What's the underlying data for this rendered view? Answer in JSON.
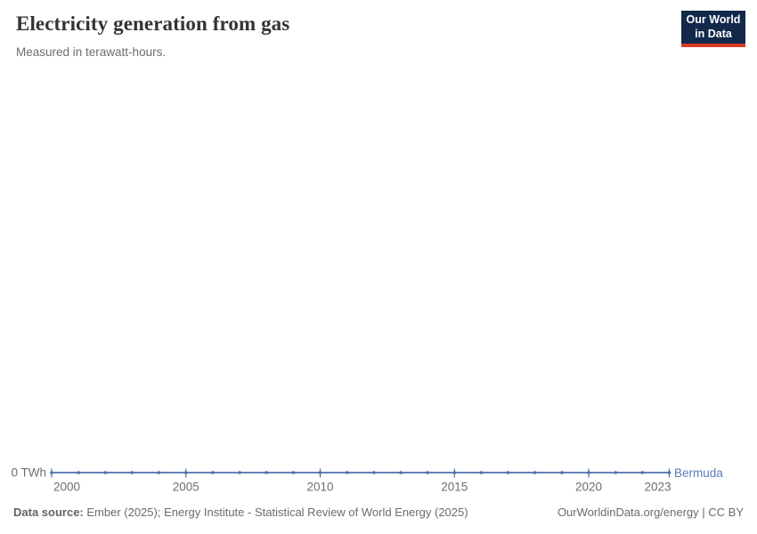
{
  "header": {
    "title": "Electricity generation from gas",
    "subtitle": "Measured in terawatt-hours.",
    "logo": {
      "line1": "Our World",
      "line2": "in Data"
    }
  },
  "chart_data": {
    "type": "line",
    "title": "Electricity generation from gas",
    "ylabel": "terawatt-hours",
    "x": [
      2000,
      2001,
      2002,
      2003,
      2004,
      2005,
      2006,
      2007,
      2008,
      2009,
      2010,
      2011,
      2012,
      2013,
      2014,
      2015,
      2016,
      2017,
      2018,
      2019,
      2020,
      2021,
      2022,
      2023
    ],
    "series": [
      {
        "name": "Bermuda",
        "values": [
          0,
          0,
          0,
          0,
          0,
          0,
          0,
          0,
          0,
          0,
          0,
          0,
          0,
          0,
          0,
          0,
          0,
          0,
          0,
          0,
          0,
          0,
          0,
          0
        ],
        "color": "#4e70a8",
        "label_color": "#5b7db8"
      }
    ],
    "x_ticks": [
      2000,
      2005,
      2010,
      2015,
      2020,
      2023
    ],
    "y_tick_label": "0 TWh",
    "xlim": [
      2000,
      2023
    ],
    "ylim": [
      0,
      0
    ],
    "grid": false,
    "markers": true,
    "legend_position": "end-of-line"
  },
  "footer": {
    "source_label": "Data source:",
    "source_text": " Ember (2025); Energy Institute - Statistical Review of World Energy (2025)",
    "license_text": "OurWorldinData.org/energy | CC BY"
  },
  "colors": {
    "series_blue": "#4e70a8",
    "series_label_blue": "#5b7db8",
    "axis_text_gray": "#6e6e6e",
    "logo_bg_navy": "#12294b",
    "logo_red": "#dc3a26"
  }
}
